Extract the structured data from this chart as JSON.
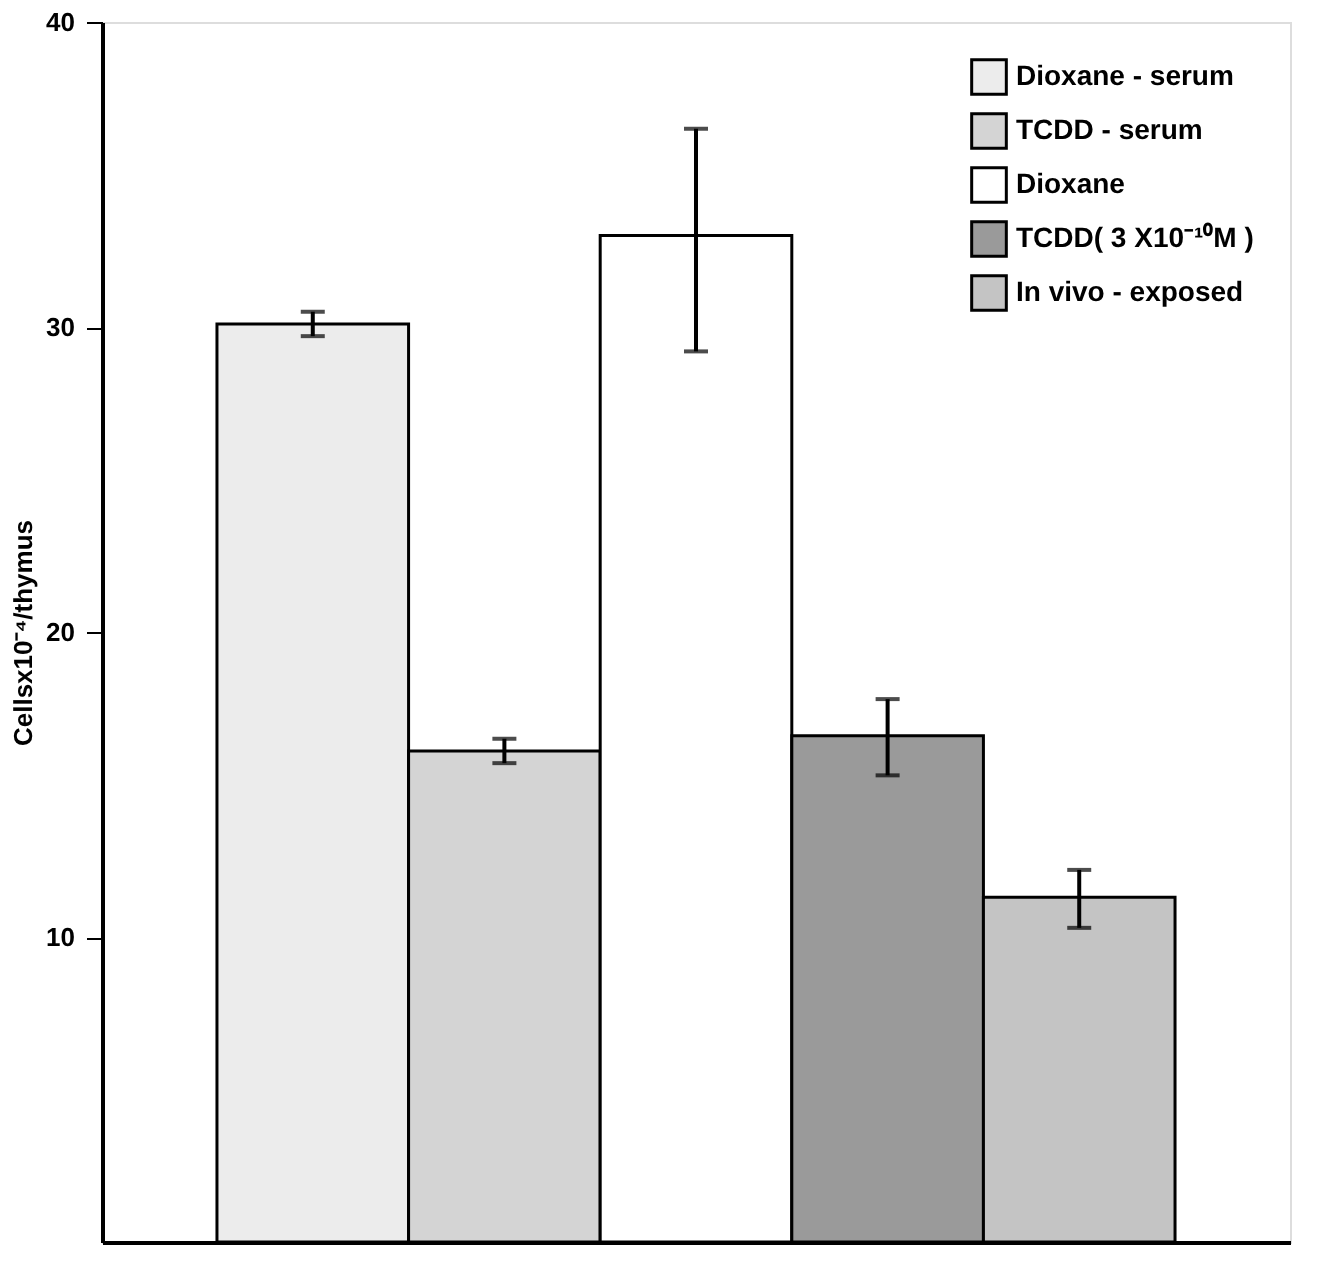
{
  "chart_data": {
    "type": "bar",
    "ylabel": "Cellsx10⁻⁴/thymus",
    "categories": [
      null,
      null,
      null,
      null,
      null
    ],
    "series": [
      {
        "name": "Dioxane - serum",
        "color": "#ececec",
        "values": [
          30.1,
          null,
          null,
          null,
          null
        ],
        "errors": [
          0.4,
          null,
          null,
          null,
          null
        ]
      },
      {
        "name": "TCDD - serum",
        "color": "#d4d4d4",
        "values": [
          null,
          16.1,
          null,
          null,
          null
        ],
        "errors": [
          null,
          0.4,
          null,
          null,
          null
        ]
      },
      {
        "name": "Dioxane",
        "color": "#ffffff",
        "values": [
          null,
          null,
          33.0,
          null,
          null
        ],
        "errors": [
          null,
          null,
          [
            29.2,
            36.5
          ],
          null,
          null
        ]
      },
      {
        "name": "TCDD( 3 X10⁻¹⁰M )",
        "color": "#9a9a9a",
        "values": [
          null,
          null,
          null,
          16.6,
          null
        ],
        "errors": [
          null,
          null,
          null,
          [
            15.3,
            17.8
          ],
          null
        ]
      },
      {
        "name": "In vivo - exposed",
        "color": "#c4c4c4",
        "values": [
          null,
          null,
          null,
          null,
          11.3
        ],
        "errors": [
          null,
          null,
          null,
          null,
          [
            10.3,
            12.2
          ]
        ]
      }
    ],
    "ylim": [
      0,
      40
    ],
    "yticks": [
      10,
      20,
      30,
      40
    ],
    "grid": false,
    "legend": "top right",
    "tick_labels": "y"
  }
}
